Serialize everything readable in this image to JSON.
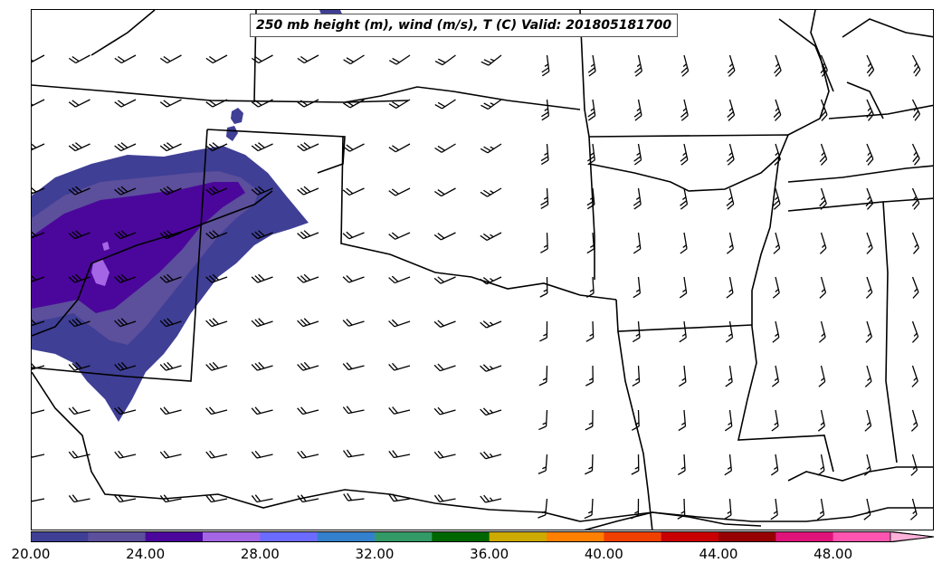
{
  "title": "250 mb height (m), wind (m/s), T (C) Valid: 201805181700",
  "colorbar": {
    "labels": [
      "20.00",
      "24.00",
      "28.00",
      "32.00",
      "36.00",
      "40.00",
      "44.00",
      "48.00"
    ],
    "colors": [
      "#3f3f96",
      "#5c4f9b",
      "#4b079b",
      "#a466e5",
      "#6b6bff",
      "#3380cc",
      "#339966",
      "#006600",
      "#ccaa00",
      "#ff8000",
      "#f04000",
      "#c80000",
      "#960000",
      "#e0137a",
      "#ff55b0",
      "#ffb2d9"
    ]
  },
  "shading_colors": {
    "outer": "#3f3f96",
    "mid": "#5c4f9b",
    "inner": "#4b079b",
    "core": "#a466e5"
  }
}
